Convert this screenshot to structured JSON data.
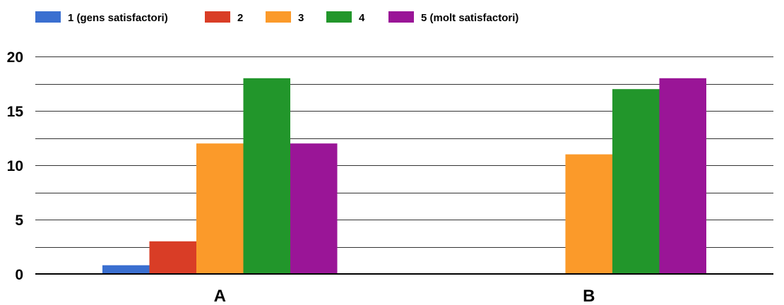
{
  "chart_data": {
    "type": "bar",
    "title": "",
    "xlabel": "",
    "ylabel": "",
    "categories": [
      "A",
      "B"
    ],
    "ylim": [
      0,
      20
    ],
    "yticks": [
      0,
      5,
      10,
      15,
      20
    ],
    "grid": true,
    "legend_position": "top-left",
    "series": [
      {
        "name": "1 (gens satisfactori)",
        "color": "#3a6fd0",
        "values": [
          0.8,
          0
        ]
      },
      {
        "name": "2",
        "color": "#d93d26",
        "values": [
          3,
          0
        ]
      },
      {
        "name": "3",
        "color": "#fb9a2a",
        "values": [
          12,
          11
        ]
      },
      {
        "name": "4",
        "color": "#22962b",
        "values": [
          18,
          17
        ]
      },
      {
        "name": "5 (molt satisfactori)",
        "color": "#9a1597",
        "values": [
          12,
          18
        ]
      }
    ]
  }
}
